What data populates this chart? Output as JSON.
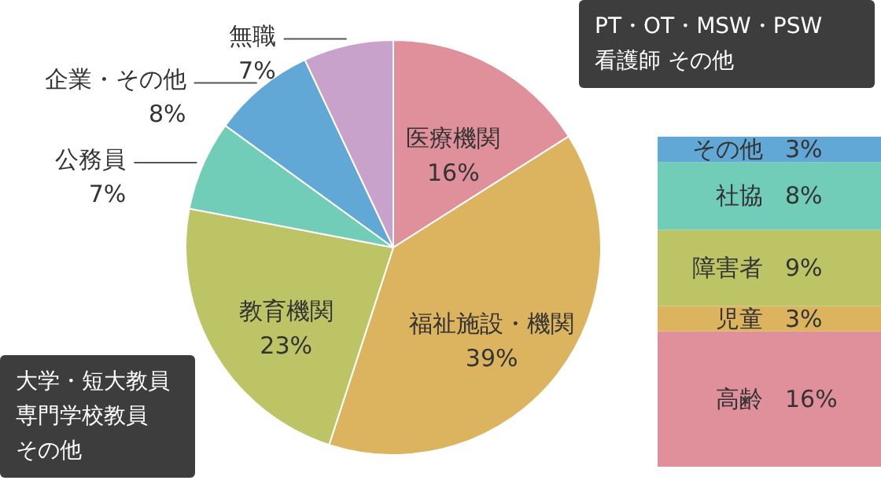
{
  "chart_data": [
    {
      "type": "pie",
      "categories": [
        "医療機関",
        "福祉施設・機関",
        "教育機関",
        "公務員",
        "企業・その他",
        "無職"
      ],
      "values": [
        16,
        39,
        23,
        7,
        8,
        7
      ],
      "value_labels": [
        "16%",
        "39%",
        "23%",
        "7%",
        "8%",
        "7%"
      ],
      "colors": [
        "#e0909a",
        "#dcb35e",
        "#bcc466",
        "#71cdb8",
        "#62a8d6",
        "#c9a2cc"
      ],
      "annotations": [
        "PT・OT・MSW・PSW",
        "看護師 その他",
        "大学・短大教員",
        "専門学校教員",
        "その他"
      ]
    },
    {
      "type": "bar",
      "stacked": true,
      "categories": [
        null
      ],
      "tick_labels": false,
      "series": [
        {
          "name": "高齢",
          "color": "#e0909a",
          "values": [
            16
          ],
          "value_labels": [
            "16%"
          ]
        },
        {
          "name": "児童",
          "color": "#dcb35e",
          "values": [
            3
          ],
          "value_labels": [
            "3%"
          ]
        },
        {
          "name": "障害者",
          "color": "#bcc466",
          "values": [
            9
          ],
          "value_labels": [
            "9%"
          ]
        },
        {
          "name": "社協",
          "color": "#71cdb8",
          "values": [
            8
          ],
          "value_labels": [
            "8%"
          ]
        },
        {
          "name": "その他",
          "color": "#62a8d6",
          "values": [
            3
          ],
          "value_labels": [
            "3%"
          ]
        }
      ]
    }
  ]
}
